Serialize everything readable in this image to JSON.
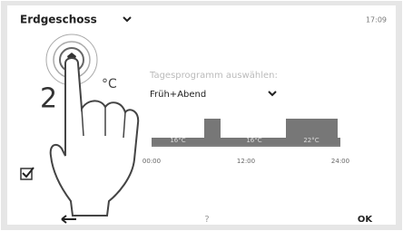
{
  "header": {
    "title": "Erdgeschoss",
    "time": "17:09"
  },
  "temperature": {
    "value": "2",
    "unit": "°C"
  },
  "program": {
    "prompt": "Tagesprogramm auswählen:",
    "selected": "Früh+Abend",
    "levels": [
      "16°C",
      "16°C",
      "22°C"
    ],
    "times": [
      "00:00",
      "12:00",
      "24:00"
    ]
  },
  "footer": {
    "help": "?",
    "ok": "OK"
  }
}
